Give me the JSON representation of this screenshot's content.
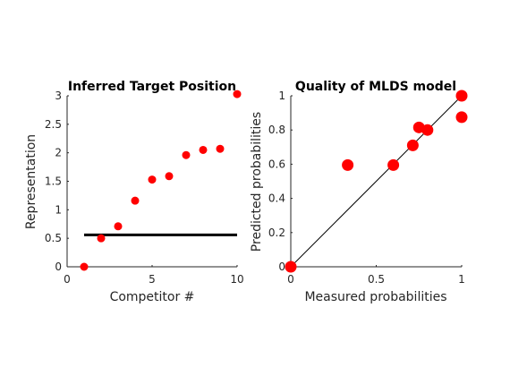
{
  "chart_data": [
    {
      "type": "scatter",
      "title": "Inferred Target Position",
      "xlabel": "Competitor #",
      "ylabel": "Representation",
      "xlim": [
        0,
        10
      ],
      "ylim": [
        0,
        3
      ],
      "xticks": [
        0,
        5,
        10
      ],
      "xtick_labels": [
        "0",
        "5",
        "10"
      ],
      "yticks": [
        0,
        0.5,
        1,
        1.5,
        2,
        2.5,
        3
      ],
      "ytick_labels": [
        "0",
        "0.5",
        "1",
        "1.5",
        "2",
        "2.5",
        "3"
      ],
      "grid": false,
      "marker_color": "#ff0000",
      "points": [
        {
          "x": 1,
          "y": 0
        },
        {
          "x": 2,
          "y": 0.5
        },
        {
          "x": 3,
          "y": 0.71
        },
        {
          "x": 4,
          "y": 1.16
        },
        {
          "x": 5,
          "y": 1.53
        },
        {
          "x": 6,
          "y": 1.59
        },
        {
          "x": 7,
          "y": 1.96
        },
        {
          "x": 8,
          "y": 2.05
        },
        {
          "x": 9,
          "y": 2.07
        },
        {
          "x": 10,
          "y": 3.03
        }
      ],
      "reference_line": {
        "x": [
          1,
          10
        ],
        "y": [
          0.56,
          0.56
        ],
        "color": "#000000"
      }
    },
    {
      "type": "scatter",
      "title": "Quality of MLDS model",
      "xlabel": "Measured probabilities",
      "ylabel": "Predicted probabilities",
      "xlim": [
        0,
        1
      ],
      "ylim": [
        0,
        1
      ],
      "xticks": [
        0,
        0.5,
        1
      ],
      "xtick_labels": [
        "0",
        "0.5",
        "1"
      ],
      "yticks": [
        0,
        0.2,
        0.4,
        0.6,
        0.8,
        1
      ],
      "ytick_labels": [
        "0",
        "0.2",
        "0.4",
        "0.6",
        "0.8",
        "1"
      ],
      "grid": false,
      "marker_color": "#ff0000",
      "points": [
        {
          "x": 0,
          "y": 0
        },
        {
          "x": 0.333,
          "y": 0.595
        },
        {
          "x": 0.6,
          "y": 0.595
        },
        {
          "x": 0.714,
          "y": 0.71
        },
        {
          "x": 0.75,
          "y": 0.815
        },
        {
          "x": 0.8,
          "y": 0.8
        },
        {
          "x": 1,
          "y": 1
        },
        {
          "x": 1,
          "y": 0.875
        }
      ],
      "reference_line": {
        "x": [
          0,
          1
        ],
        "y": [
          0,
          1
        ],
        "color": "#000000"
      }
    }
  ]
}
